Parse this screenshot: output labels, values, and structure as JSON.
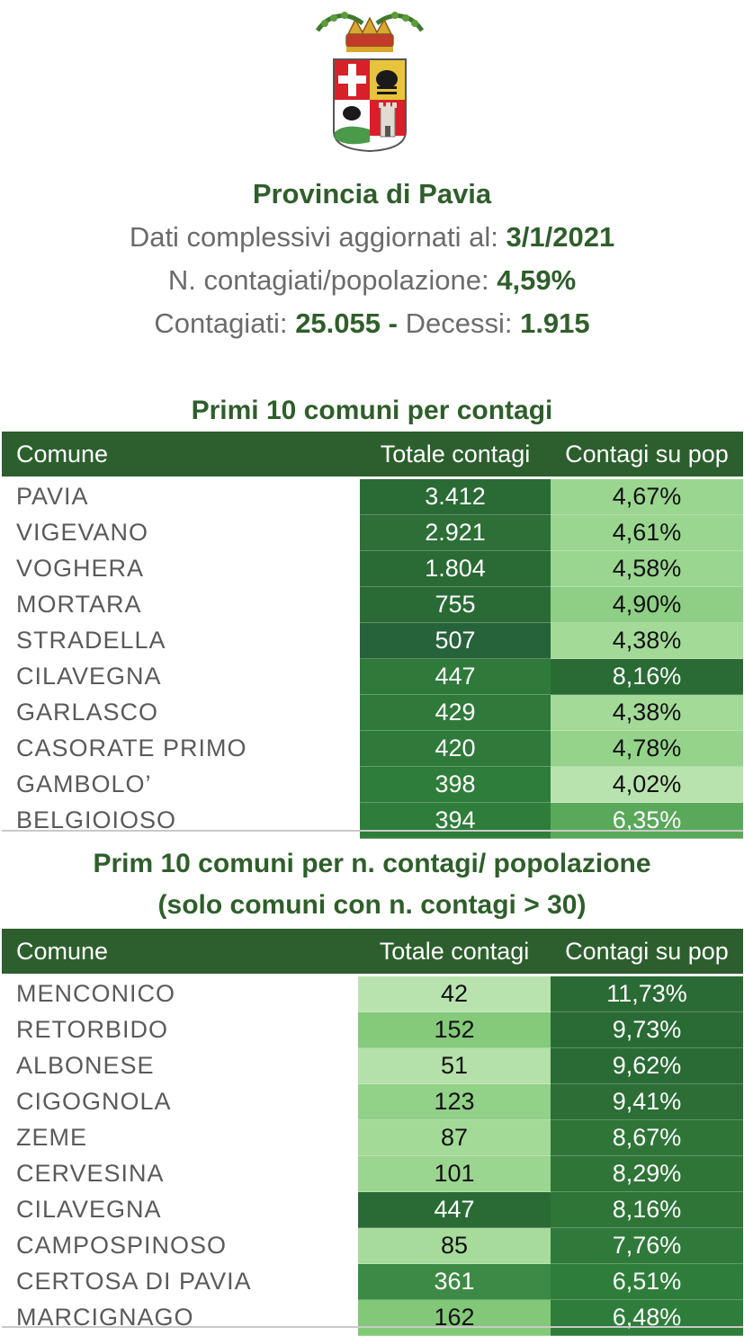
{
  "header": {
    "title": "Provincia di Pavia",
    "updated_label": "Dati complessivi aggiornati al:",
    "updated_value": "3/1/2021",
    "ratio_label": "N. contagiati/popolazione:",
    "ratio_value": "4,59%",
    "infected_label": "Contagiati:",
    "infected_value": "25.055 -",
    "deaths_label": "Decessi:",
    "deaths_value": "1.915"
  },
  "table1": {
    "title": "Primi 10 comuni per contagi",
    "columns": [
      "Comune",
      "Totale contagi",
      "Contagi su pop"
    ],
    "rows": [
      {
        "name": "PAVIA",
        "total": "3.412",
        "pct": "4,67%",
        "total_bg": "#2a6b35",
        "pct_bg": "#9ad68f",
        "total_fg": "#ffffff",
        "pct_fg": "#111111"
      },
      {
        "name": "VIGEVANO",
        "total": "2.921",
        "pct": "4,61%",
        "total_bg": "#2d6f37",
        "pct_bg": "#9ad68f",
        "total_fg": "#ffffff",
        "pct_fg": "#111111"
      },
      {
        "name": "VOGHERA",
        "total": "1.804",
        "pct": "4,58%",
        "total_bg": "#2a6b35",
        "pct_bg": "#9ad68f",
        "total_fg": "#ffffff",
        "pct_fg": "#111111"
      },
      {
        "name": "MORTARA",
        "total": "755",
        "pct": "4,90%",
        "total_bg": "#2a6b35",
        "pct_bg": "#8fcf85",
        "total_fg": "#ffffff",
        "pct_fg": "#111111"
      },
      {
        "name": "STRADELLA",
        "total": "507",
        "pct": "4,38%",
        "total_bg": "#26623a",
        "pct_bg": "#a3da98",
        "total_fg": "#ffffff",
        "pct_fg": "#111111"
      },
      {
        "name": "CILAVEGNA",
        "total": "447",
        "pct": "8,16%",
        "total_bg": "#2f7a3a",
        "pct_bg": "#2a6b35",
        "total_fg": "#ffffff",
        "pct_fg": "#ffffff"
      },
      {
        "name": "GARLASCO",
        "total": "429",
        "pct": "4,38%",
        "total_bg": "#2f7a3a",
        "pct_bg": "#a3da98",
        "total_fg": "#ffffff",
        "pct_fg": "#111111"
      },
      {
        "name": "CASORATE PRIMO",
        "total": "420",
        "pct": "4,78%",
        "total_bg": "#2f7a3a",
        "pct_bg": "#95d38b",
        "total_fg": "#ffffff",
        "pct_fg": "#111111"
      },
      {
        "name": "GAMBOLO’",
        "total": "398",
        "pct": "4,02%",
        "total_bg": "#2f7d3b",
        "pct_bg": "#b9e3ae",
        "total_fg": "#ffffff",
        "pct_fg": "#111111"
      },
      {
        "name": "BELGIOIOSO",
        "total": "394",
        "pct": "6,35%",
        "total_bg": "#2f7d3b",
        "pct_bg": "#5aa85a",
        "total_fg": "#ffffff",
        "pct_fg": "#ffffff"
      }
    ]
  },
  "table2": {
    "title_line1": "Prim 10 comuni per n. contagi/ popolazione",
    "title_line2": "(solo comuni con n. contagi > 30)",
    "columns": [
      "Comune",
      "Totale contagi",
      "Contagi su pop"
    ],
    "rows": [
      {
        "name": "MENCONICO",
        "total": "42",
        "pct": "11,73%",
        "total_bg": "#b9e3ae",
        "pct_bg": "#2a6b35",
        "total_fg": "#111111",
        "pct_fg": "#ffffff"
      },
      {
        "name": "RETORBIDO",
        "total": "152",
        "pct": "9,73%",
        "total_bg": "#85c97b",
        "pct_bg": "#2a6b35",
        "total_fg": "#111111",
        "pct_fg": "#ffffff"
      },
      {
        "name": "ALBONESE",
        "total": "51",
        "pct": "9,62%",
        "total_bg": "#b4e0a9",
        "pct_bg": "#2a6b35",
        "total_fg": "#111111",
        "pct_fg": "#ffffff"
      },
      {
        "name": "CIGOGNOLA",
        "total": "123",
        "pct": "9,41%",
        "total_bg": "#92d188",
        "pct_bg": "#2c6e36",
        "total_fg": "#111111",
        "pct_fg": "#ffffff"
      },
      {
        "name": "ZEME",
        "total": "87",
        "pct": "8,67%",
        "total_bg": "#a3da98",
        "pct_bg": "#2f7538",
        "total_fg": "#111111",
        "pct_fg": "#ffffff"
      },
      {
        "name": "CERVESINA",
        "total": "101",
        "pct": "8,29%",
        "total_bg": "#9bd690",
        "pct_bg": "#2f7538",
        "total_fg": "#111111",
        "pct_fg": "#ffffff"
      },
      {
        "name": "CILAVEGNA",
        "total": "447",
        "pct": "8,16%",
        "total_bg": "#2a6b35",
        "pct_bg": "#2f7538",
        "total_fg": "#ffffff",
        "pct_fg": "#ffffff"
      },
      {
        "name": "CAMPOSPINOSO",
        "total": "85",
        "pct": "7,76%",
        "total_bg": "#a6db9b",
        "pct_bg": "#2f7a3a",
        "total_fg": "#111111",
        "pct_fg": "#ffffff"
      },
      {
        "name": "CERTOSA DI PAVIA",
        "total": "361",
        "pct": "6,51%",
        "total_bg": "#3c8a45",
        "pct_bg": "#2f7d3b",
        "total_fg": "#ffffff",
        "pct_fg": "#ffffff"
      },
      {
        "name": "MARCIGNAGO",
        "total": "162",
        "pct": "6,48%",
        "total_bg": "#82c878",
        "pct_bg": "#2f7d3b",
        "total_fg": "#111111",
        "pct_fg": "#ffffff"
      }
    ]
  }
}
